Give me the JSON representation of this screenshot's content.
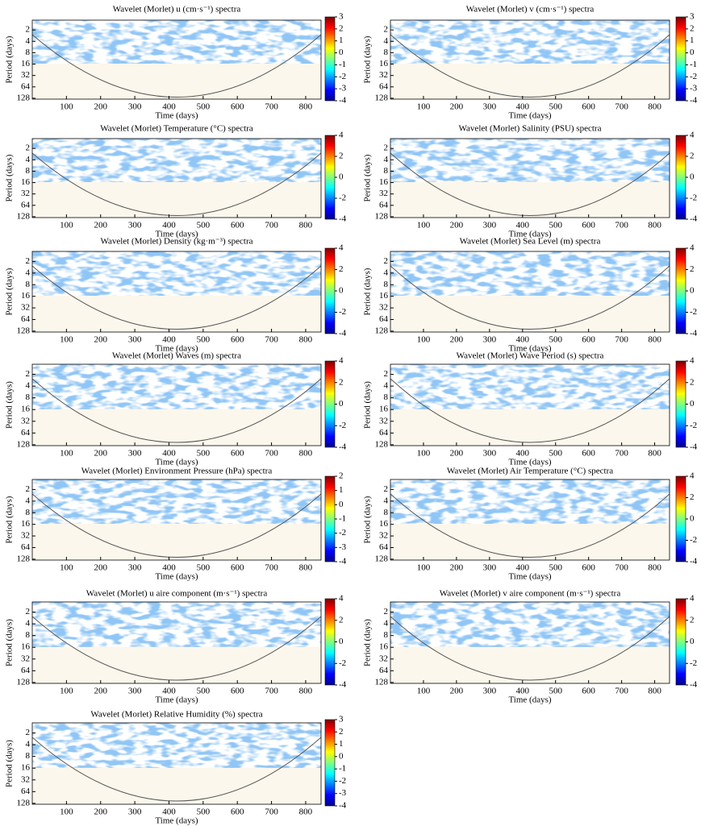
{
  "chart_data": [
    {
      "type": "contour",
      "title": "Wavelet (Morlet) u (cm·s⁻¹) spectra",
      "xlabel": "Time (days)",
      "ylabel": "Period (days)",
      "xlim": [
        0,
        845
      ],
      "xticks": [
        100,
        200,
        300,
        400,
        500,
        600,
        700,
        800
      ],
      "ylim": [
        1.1,
        135
      ],
      "yticks": [
        2,
        4,
        8,
        16,
        32,
        64,
        128
      ],
      "log_y": true,
      "colorbar_lim": [
        -4,
        3
      ],
      "colorbar_ticks": [
        3,
        2,
        1,
        0,
        -1,
        -2,
        -3,
        -4
      ]
    },
    {
      "type": "contour",
      "title": "Wavelet (Morlet) v (cm·s⁻¹) spectra",
      "xlabel": "Time (days)",
      "ylabel": "Period (days)",
      "xlim": [
        0,
        845
      ],
      "xticks": [
        100,
        200,
        300,
        400,
        500,
        600,
        700,
        800
      ],
      "ylim": [
        1.1,
        135
      ],
      "yticks": [
        2,
        4,
        8,
        16,
        32,
        64,
        128
      ],
      "log_y": true,
      "colorbar_lim": [
        -4,
        3
      ],
      "colorbar_ticks": [
        3,
        2,
        1,
        0,
        -1,
        -2,
        -3,
        -4
      ]
    },
    {
      "type": "contour",
      "title": "Wavelet (Morlet) Temperature (°C) spectra",
      "xlabel": "Time (days)",
      "ylabel": "Period (days)",
      "xlim": [
        0,
        845
      ],
      "xticks": [
        100,
        200,
        300,
        400,
        500,
        600,
        700,
        800
      ],
      "ylim": [
        1.1,
        135
      ],
      "yticks": [
        2,
        4,
        8,
        16,
        32,
        64,
        128
      ],
      "log_y": true,
      "colorbar_lim": [
        -4,
        4
      ],
      "colorbar_ticks": [
        4,
        2,
        0,
        -2,
        -4
      ]
    },
    {
      "type": "contour",
      "title": "Wavelet (Morlet) Salinity (PSU) spectra",
      "xlabel": "Time (days)",
      "ylabel": "Period (days)",
      "xlim": [
        0,
        845
      ],
      "xticks": [
        100,
        200,
        300,
        400,
        500,
        600,
        700,
        800
      ],
      "ylim": [
        1.1,
        135
      ],
      "yticks": [
        2,
        4,
        8,
        16,
        32,
        64,
        128
      ],
      "log_y": true,
      "colorbar_lim": [
        -4,
        4
      ],
      "colorbar_ticks": [
        4,
        2,
        0,
        -2,
        -4
      ]
    },
    {
      "type": "contour",
      "title": "Wavelet (Morlet) Density (kg·m⁻³) spectra",
      "xlabel": "Time (days)",
      "ylabel": "Period (days)",
      "xlim": [
        0,
        845
      ],
      "xticks": [
        100,
        200,
        300,
        400,
        500,
        600,
        700,
        800
      ],
      "ylim": [
        1.1,
        135
      ],
      "yticks": [
        2,
        4,
        8,
        16,
        32,
        64,
        128
      ],
      "log_y": true,
      "colorbar_lim": [
        -4,
        4
      ],
      "colorbar_ticks": [
        4,
        2,
        0,
        -2,
        -4
      ]
    },
    {
      "type": "contour",
      "title": "Wavelet (Morlet) Sea Level (m) spectra",
      "xlabel": "Time (days)",
      "ylabel": "Period (days)",
      "xlim": [
        0,
        845
      ],
      "xticks": [
        100,
        200,
        300,
        400,
        500,
        600,
        700,
        800
      ],
      "ylim": [
        1.1,
        135
      ],
      "yticks": [
        2,
        4,
        8,
        16,
        32,
        64,
        128
      ],
      "log_y": true,
      "colorbar_lim": [
        -4,
        4
      ],
      "colorbar_ticks": [
        4,
        2,
        0,
        -2,
        -4
      ]
    },
    {
      "type": "contour",
      "title": "Wavelet (Morlet) Waves (m) spectra",
      "xlabel": "Time (days)",
      "ylabel": "Period (days)",
      "xlim": [
        0,
        845
      ],
      "xticks": [
        100,
        200,
        300,
        400,
        500,
        600,
        700,
        800
      ],
      "ylim": [
        1.1,
        135
      ],
      "yticks": [
        2,
        4,
        8,
        16,
        32,
        64,
        128
      ],
      "log_y": true,
      "colorbar_lim": [
        -4,
        4
      ],
      "colorbar_ticks": [
        4,
        2,
        0,
        -2,
        -4
      ]
    },
    {
      "type": "contour",
      "title": "Wavelet (Morlet) Wave Period (s) spectra",
      "xlabel": "Time (days)",
      "ylabel": "Period (days)",
      "xlim": [
        0,
        845
      ],
      "xticks": [
        100,
        200,
        300,
        400,
        500,
        600,
        700,
        800
      ],
      "ylim": [
        1.1,
        135
      ],
      "yticks": [
        2,
        4,
        8,
        16,
        32,
        64,
        128
      ],
      "log_y": true,
      "colorbar_lim": [
        -4,
        4
      ],
      "colorbar_ticks": [
        4,
        2,
        0,
        -2,
        -4
      ]
    },
    {
      "type": "contour",
      "title": "Wavelet (Morlet) Environment Pressure (hPa) spectra",
      "xlabel": "Time (days)",
      "ylabel": "Period (days)",
      "xlim": [
        0,
        845
      ],
      "xticks": [
        100,
        200,
        300,
        400,
        500,
        600,
        700,
        800
      ],
      "ylim": [
        1.1,
        135
      ],
      "yticks": [
        2,
        4,
        8,
        16,
        32,
        64,
        128
      ],
      "log_y": true,
      "colorbar_lim": [
        -4,
        2
      ],
      "colorbar_ticks": [
        2,
        1,
        0,
        -1,
        -2,
        -3,
        -4
      ]
    },
    {
      "type": "contour",
      "title": "Wavelet (Morlet) Air Temperature (°C) spectra",
      "xlabel": "Time (days)",
      "ylabel": "Period (days)",
      "xlim": [
        0,
        845
      ],
      "xticks": [
        100,
        200,
        300,
        400,
        500,
        600,
        700,
        800
      ],
      "ylim": [
        1.1,
        135
      ],
      "yticks": [
        2,
        4,
        8,
        16,
        32,
        64,
        128
      ],
      "log_y": true,
      "colorbar_lim": [
        -4,
        4
      ],
      "colorbar_ticks": [
        4,
        2,
        0,
        -2,
        -4
      ]
    },
    {
      "type": "contour",
      "title": "Wavelet (Morlet) u aire component (m·s⁻¹) spectra",
      "xlabel": "Time (days)",
      "ylabel": "Period (days)",
      "xlim": [
        0,
        845
      ],
      "xticks": [
        100,
        200,
        300,
        400,
        500,
        600,
        700,
        800
      ],
      "ylim": [
        1.1,
        135
      ],
      "yticks": [
        2,
        4,
        8,
        16,
        32,
        64,
        128
      ],
      "log_y": true,
      "colorbar_lim": [
        -4,
        4
      ],
      "colorbar_ticks": [
        4,
        2,
        0,
        -2,
        -4
      ]
    },
    {
      "type": "contour",
      "title": "Wavelet (Morlet) v aire component (m·s⁻¹) spectra",
      "xlabel": "Time (days)",
      "ylabel": "Period (days)",
      "xlim": [
        0,
        845
      ],
      "xticks": [
        100,
        200,
        300,
        400,
        500,
        600,
        700,
        800
      ],
      "ylim": [
        1.1,
        135
      ],
      "yticks": [
        2,
        4,
        8,
        16,
        32,
        64,
        128
      ],
      "log_y": true,
      "colorbar_lim": [
        -4,
        4
      ],
      "colorbar_ticks": [
        4,
        2,
        0,
        -2,
        -4
      ]
    },
    {
      "type": "contour",
      "title": "Wavelet (Morlet) Relative Humidity (%) spectra",
      "xlabel": "Time (days)",
      "ylabel": "Period (days)",
      "xlim": [
        0,
        845
      ],
      "xticks": [
        100,
        200,
        300,
        400,
        500,
        600,
        700,
        800
      ],
      "ylim": [
        1.1,
        135
      ],
      "yticks": [
        2,
        4,
        8,
        16,
        32,
        64,
        128
      ],
      "log_y": true,
      "colorbar_lim": [
        -4,
        3
      ],
      "colorbar_ticks": [
        3,
        2,
        1,
        0,
        -1,
        -2,
        -3,
        -4
      ]
    }
  ]
}
